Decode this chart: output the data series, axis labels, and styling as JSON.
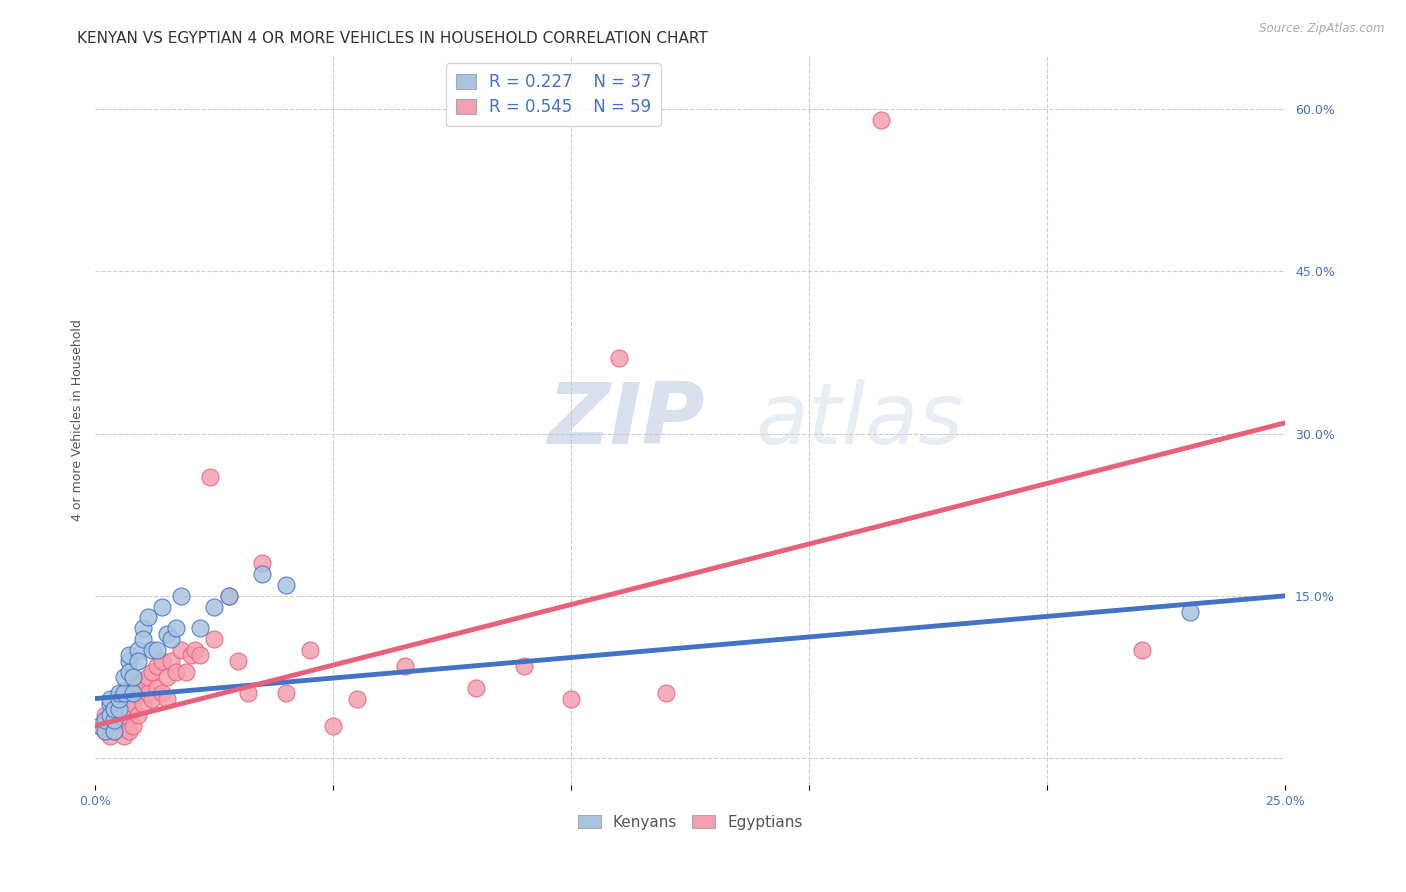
{
  "title": "KENYAN VS EGYPTIAN 4 OR MORE VEHICLES IN HOUSEHOLD CORRELATION CHART",
  "source": "Source: ZipAtlas.com",
  "ylabel": "4 or more Vehicles in Household",
  "x_min": 0.0,
  "x_max": 0.25,
  "y_min": -0.025,
  "y_max": 0.65,
  "x_ticks": [
    0.0,
    0.05,
    0.1,
    0.15,
    0.2,
    0.25
  ],
  "x_tick_labels": [
    "0.0%",
    "",
    "",
    "",
    "",
    "25.0%"
  ],
  "y_ticks_right": [
    0.0,
    0.15,
    0.3,
    0.45,
    0.6
  ],
  "y_tick_labels_right": [
    "",
    "15.0%",
    "30.0%",
    "45.0%",
    "60.0%"
  ],
  "legend_R_kenyan": "0.227",
  "legend_N_kenyan": "37",
  "legend_R_egyptian": "0.545",
  "legend_N_egyptian": "59",
  "kenyan_color": "#a8c4e0",
  "egyptian_color": "#f4a0b0",
  "kenyan_line_color": "#4472c4",
  "egyptian_line_color": "#e8607a",
  "watermark_zip": "ZIP",
  "watermark_atlas": "atlas",
  "kenyan_points_x": [
    0.001,
    0.002,
    0.002,
    0.003,
    0.003,
    0.003,
    0.004,
    0.004,
    0.004,
    0.005,
    0.005,
    0.005,
    0.006,
    0.006,
    0.007,
    0.007,
    0.007,
    0.008,
    0.008,
    0.009,
    0.009,
    0.01,
    0.01,
    0.011,
    0.012,
    0.013,
    0.014,
    0.015,
    0.016,
    0.017,
    0.018,
    0.022,
    0.025,
    0.028,
    0.035,
    0.04,
    0.23
  ],
  "kenyan_points_y": [
    0.03,
    0.025,
    0.035,
    0.05,
    0.04,
    0.055,
    0.025,
    0.035,
    0.045,
    0.045,
    0.055,
    0.06,
    0.06,
    0.075,
    0.09,
    0.08,
    0.095,
    0.06,
    0.075,
    0.1,
    0.09,
    0.12,
    0.11,
    0.13,
    0.1,
    0.1,
    0.14,
    0.115,
    0.11,
    0.12,
    0.15,
    0.12,
    0.14,
    0.15,
    0.17,
    0.16,
    0.135
  ],
  "egyptian_points_x": [
    0.001,
    0.002,
    0.002,
    0.003,
    0.003,
    0.004,
    0.004,
    0.004,
    0.005,
    0.005,
    0.005,
    0.006,
    0.006,
    0.006,
    0.007,
    0.007,
    0.007,
    0.008,
    0.008,
    0.008,
    0.009,
    0.009,
    0.01,
    0.01,
    0.011,
    0.011,
    0.012,
    0.012,
    0.013,
    0.013,
    0.014,
    0.014,
    0.015,
    0.015,
    0.016,
    0.017,
    0.018,
    0.019,
    0.02,
    0.021,
    0.022,
    0.024,
    0.025,
    0.028,
    0.03,
    0.032,
    0.035,
    0.04,
    0.045,
    0.05,
    0.055,
    0.065,
    0.08,
    0.09,
    0.1,
    0.11,
    0.12,
    0.165,
    0.22
  ],
  "egyptian_points_y": [
    0.03,
    0.025,
    0.04,
    0.035,
    0.02,
    0.045,
    0.025,
    0.05,
    0.035,
    0.045,
    0.055,
    0.02,
    0.04,
    0.06,
    0.025,
    0.045,
    0.065,
    0.03,
    0.05,
    0.07,
    0.04,
    0.06,
    0.05,
    0.07,
    0.06,
    0.075,
    0.055,
    0.08,
    0.065,
    0.085,
    0.06,
    0.09,
    0.055,
    0.075,
    0.09,
    0.08,
    0.1,
    0.08,
    0.095,
    0.1,
    0.095,
    0.26,
    0.11,
    0.15,
    0.09,
    0.06,
    0.18,
    0.06,
    0.1,
    0.03,
    0.055,
    0.085,
    0.065,
    0.085,
    0.055,
    0.37,
    0.06,
    0.59,
    0.1
  ],
  "kenyan_line_x0": 0.0,
  "kenyan_line_y0": 0.055,
  "kenyan_line_x1": 0.25,
  "kenyan_line_y1": 0.15,
  "egyptian_line_x0": 0.0,
  "egyptian_line_y0": 0.03,
  "egyptian_line_x1": 0.25,
  "egyptian_line_y1": 0.31,
  "grid_color": "#cccccc",
  "background_color": "#ffffff",
  "title_fontsize": 11,
  "label_fontsize": 9,
  "tick_fontsize": 9
}
